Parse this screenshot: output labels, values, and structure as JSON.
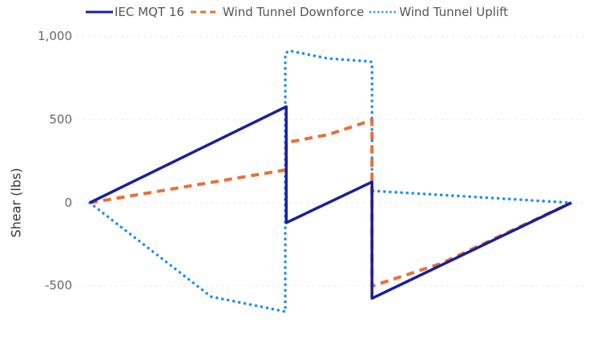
{
  "legend": {
    "items": [
      {
        "label": "IEC MQT 16",
        "color": "#1a1f9c",
        "style": "solid"
      },
      {
        "label": "Wind Tunnel Downforce",
        "color": "#e8703a",
        "style": "dashed"
      },
      {
        "label": "Wind Tunnel Uplift",
        "color": "#1e8ff0",
        "style": "dotted"
      }
    ]
  },
  "axes": {
    "ylabel": "Shear (lbs)",
    "yticks": [
      "1,000",
      "500",
      "0",
      "-500"
    ]
  },
  "chart_data": {
    "type": "line",
    "title": "",
    "xlabel": "",
    "ylabel": "Shear (lbs)",
    "ylim": [
      -650,
      1000
    ],
    "yticks": [
      -500,
      0,
      500,
      1000
    ],
    "grid": "horizontal dotted",
    "legend_position": "top",
    "x_note": "No x-axis labels shown; x given as relative position 0-100 along span",
    "series": [
      {
        "name": "IEC MQT 16",
        "color": "#1a1f9c",
        "style": "solid",
        "points": [
          [
            0,
            0
          ],
          [
            40.8,
            578
          ],
          [
            40.8,
            -120
          ],
          [
            58.6,
            125
          ],
          [
            58.6,
            -575
          ],
          [
            100,
            0
          ]
        ]
      },
      {
        "name": "Wind Tunnel Downforce",
        "color": "#e8703a",
        "style": "dashed",
        "points": [
          [
            0,
            0
          ],
          [
            40.8,
            198
          ],
          [
            40.8,
            362
          ],
          [
            49.5,
            410
          ],
          [
            58.6,
            497
          ],
          [
            58.6,
            -502
          ],
          [
            73,
            -365
          ],
          [
            100,
            0
          ]
        ]
      },
      {
        "name": "Wind Tunnel Uplift",
        "color": "#1e8ff0",
        "style": "dotted",
        "points": [
          [
            0,
            0
          ],
          [
            25.2,
            -565
          ],
          [
            40.6,
            -655
          ],
          [
            40.6,
            898
          ],
          [
            41.4,
            915
          ],
          [
            49.5,
            868
          ],
          [
            58.2,
            850
          ],
          [
            58.6,
            845
          ],
          [
            58.6,
            72
          ],
          [
            100,
            0
          ]
        ]
      }
    ]
  }
}
